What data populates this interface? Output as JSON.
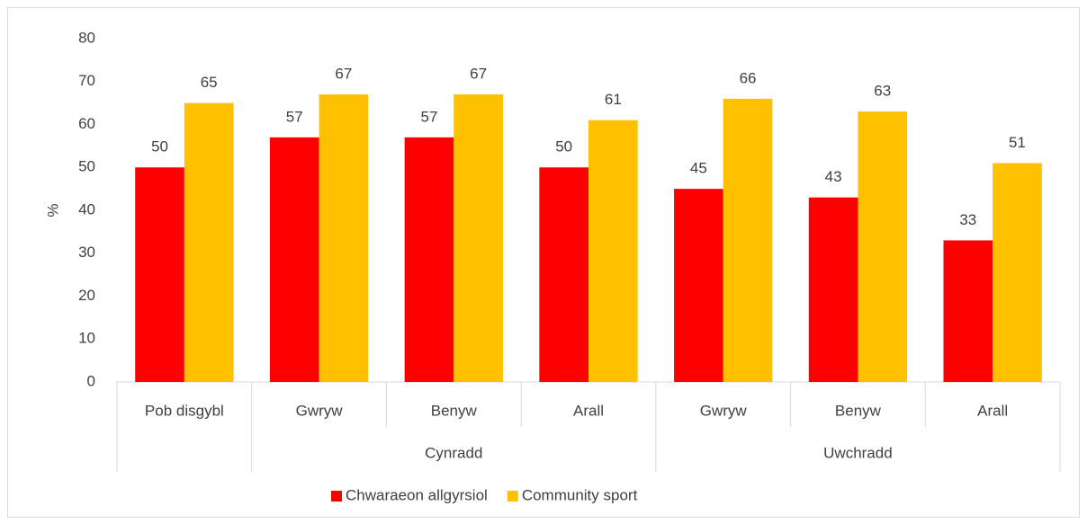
{
  "chart_data": {
    "type": "bar",
    "ylabel": "%",
    "groups": [
      {
        "name": null,
        "categories": [
          "Pob disgybl"
        ]
      },
      {
        "name": "Cynradd",
        "categories": [
          "Gwryw",
          "Benyw",
          "Arall"
        ]
      },
      {
        "name": "Uwchradd",
        "categories": [
          "Gwryw",
          "Benyw",
          "Arall"
        ]
      }
    ],
    "series": [
      {
        "name": "Chwaraeon allgyrsiol",
        "color": "#ff0000",
        "values": [
          50,
          57,
          57,
          50,
          45,
          43,
          33
        ]
      },
      {
        "name": "Community sport",
        "color": "#ffc000",
        "values": [
          65,
          67,
          67,
          61,
          66,
          63,
          51
        ]
      }
    ],
    "ylim": [
      0,
      80
    ],
    "yticks": [
      0,
      10,
      20,
      30,
      40,
      50,
      60,
      70,
      80
    ],
    "grid": false,
    "legend": "bottom"
  }
}
